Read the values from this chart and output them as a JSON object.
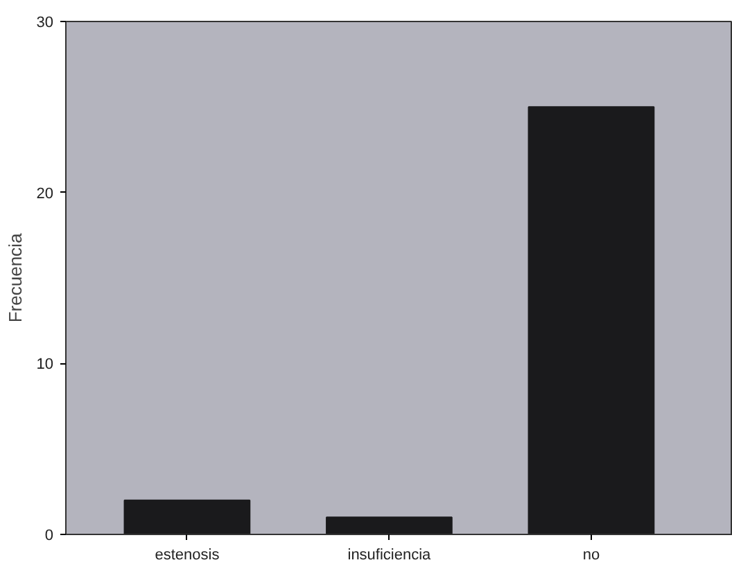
{
  "chart_data": {
    "type": "bar",
    "ylabel": "Frecuencia",
    "categories": [
      "estenosis",
      "insuficiencia",
      "no"
    ],
    "values": [
      2,
      1,
      25
    ],
    "color": "#1a1a1c",
    "ylim": [
      0,
      30
    ],
    "yticks": [
      0,
      10,
      20,
      30
    ],
    "grid": false
  }
}
